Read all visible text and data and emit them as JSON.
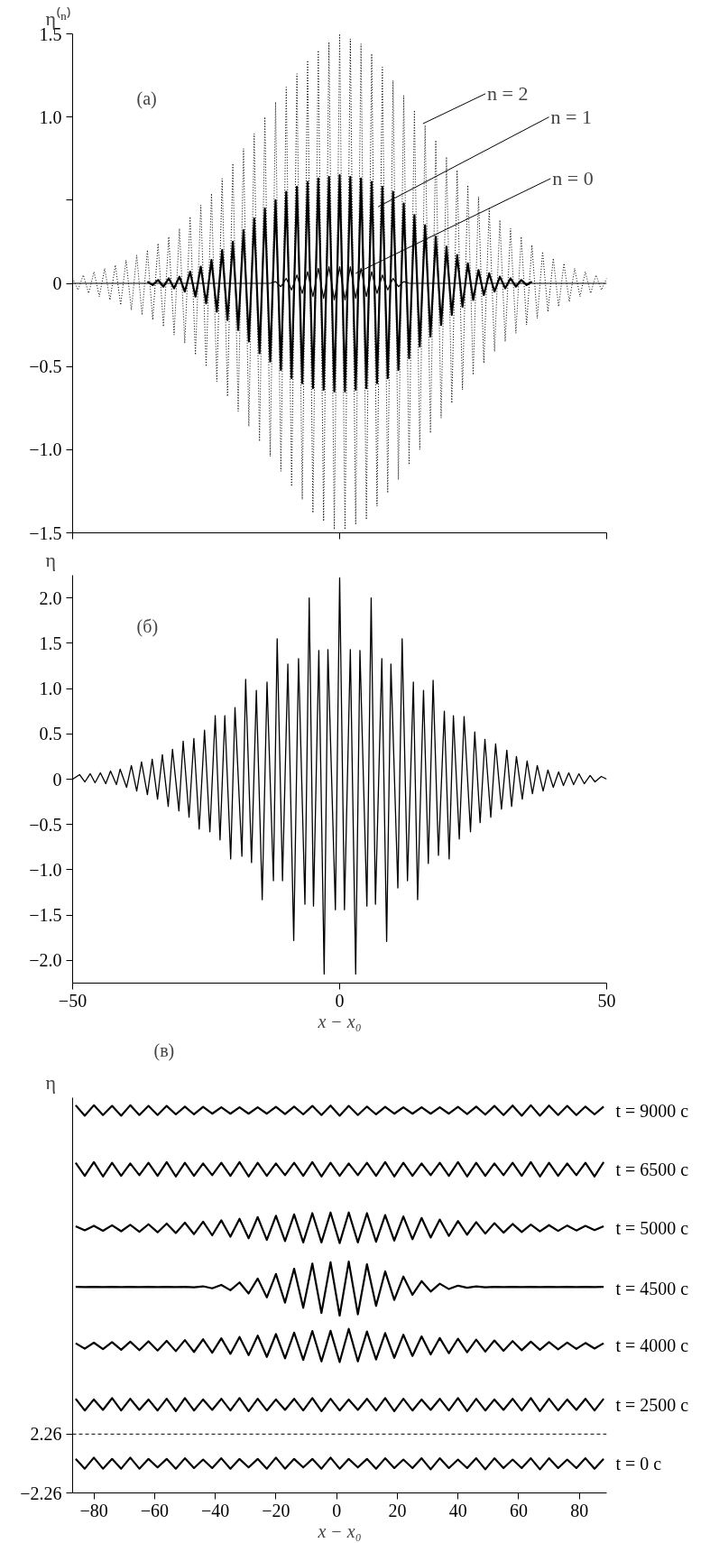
{
  "chart_data": [
    {
      "type": "line",
      "ylabel": "η⁽ⁿ⁾",
      "xlim": [
        -50,
        50
      ],
      "ylim": [
        -1.5,
        1.5
      ],
      "xticks": [
        {
          "value": -50,
          "label": null
        },
        {
          "value": 0,
          "label": null
        },
        {
          "value": 50,
          "label": null
        }
      ],
      "yticks": [
        -1.5,
        {
          "value": -1,
          "label": "−1.0"
        },
        -0.5,
        0,
        {
          "value": 0.5,
          "label": null
        },
        {
          "value": 1,
          "label": "1.0"
        },
        1.5
      ],
      "tick_labels": "y",
      "annotations": [
        "(a)",
        {
          "text": "n = 2",
          "x": 15.6,
          "y": 0.96
        },
        {
          "text": "n = 1",
          "x": 7.2,
          "y": 0.46
        },
        {
          "text": "n = 0",
          "x": 3,
          "y": 0.06
        }
      ],
      "series": [
        {
          "color": "#000000",
          "line_style": "dotted",
          "x": [
            -50,
            -49,
            -48,
            -47,
            -46,
            -45,
            -44,
            -43,
            -42,
            -41,
            -40,
            -39,
            -38,
            -37,
            -36,
            -35,
            -34,
            -33,
            -32,
            -31,
            -30,
            -29,
            -28,
            -27,
            -26,
            -25,
            -24,
            -23,
            -22,
            -21,
            -20,
            -19,
            -18,
            -17,
            -16,
            -15,
            -14,
            -13,
            -12,
            -11,
            -10,
            -9,
            -8,
            -7,
            -6,
            -5,
            -4,
            -3,
            -2,
            -1,
            0,
            1,
            2,
            3,
            4,
            5,
            6,
            7,
            8,
            9,
            10,
            11,
            12,
            13,
            14,
            15,
            16,
            17,
            18,
            19,
            20,
            21,
            22,
            23,
            24,
            25,
            26,
            27,
            28,
            29,
            30,
            31,
            32,
            33,
            34,
            35,
            36,
            37,
            38,
            39,
            40,
            41,
            42,
            43,
            44,
            45,
            46,
            47,
            48,
            49,
            50
          ],
          "values": [
            0.03,
            -0.04,
            0.05,
            -0.06,
            0.07,
            -0.08,
            0.09,
            -0.1,
            0.11,
            -0.13,
            0.14,
            -0.16,
            0.17,
            -0.19,
            0.2,
            -0.22,
            0.24,
            -0.26,
            0.28,
            -0.31,
            0.33,
            -0.36,
            0.4,
            -0.43,
            0.47,
            -0.5,
            0.54,
            -0.59,
            0.63,
            -0.68,
            0.72,
            -0.77,
            0.81,
            -0.86,
            0.9,
            -0.95,
            1.0,
            -1.04,
            1.09,
            -1.13,
            1.18,
            -1.22,
            1.26,
            -1.3,
            1.34,
            -1.38,
            1.4,
            -1.43,
            1.45,
            -1.48,
            1.5,
            -1.48,
            1.47,
            -1.45,
            1.44,
            -1.42,
            1.38,
            -1.34,
            1.3,
            -1.26,
            1.22,
            -1.18,
            1.13,
            -1.09,
            1.04,
            -1.0,
            0.95,
            -0.9,
            0.86,
            -0.81,
            0.76,
            -0.72,
            0.68,
            -0.64,
            0.59,
            -0.55,
            0.52,
            -0.48,
            0.45,
            -0.41,
            0.38,
            -0.35,
            0.33,
            -0.3,
            0.28,
            -0.25,
            0.23,
            -0.21,
            0.19,
            -0.17,
            0.15,
            -0.14,
            0.12,
            -0.11,
            0.09,
            -0.08,
            0.07,
            -0.06,
            0.05,
            -0.04,
            0.03
          ]
        },
        {
          "color": "#000000",
          "line_style": "solid",
          "x": [
            -36,
            -35,
            -34,
            -33,
            -32,
            -31,
            -30,
            -29,
            -28,
            -27,
            -26,
            -25,
            -24,
            -23,
            -22,
            -21,
            -20,
            -19,
            -18,
            -17,
            -16,
            -15,
            -14,
            -13,
            -12,
            -11,
            -10,
            -9,
            -8,
            -7,
            -6,
            -5,
            -4,
            -3,
            -2,
            -1,
            0,
            1,
            2,
            3,
            4,
            5,
            6,
            7,
            8,
            9,
            10,
            11,
            12,
            13,
            14,
            15,
            16,
            17,
            18,
            19,
            20,
            21,
            22,
            23,
            24,
            25,
            26,
            27,
            28,
            29,
            30,
            31,
            32,
            33,
            34,
            35,
            36
          ],
          "values": [
            0.01,
            -0.01,
            0.02,
            -0.02,
            0.03,
            -0.03,
            0.04,
            -0.05,
            0.07,
            -0.08,
            0.1,
            -0.12,
            0.14,
            -0.17,
            0.2,
            -0.22,
            0.25,
            -0.28,
            0.32,
            -0.35,
            0.39,
            -0.42,
            0.45,
            -0.47,
            0.5,
            -0.52,
            0.55,
            -0.57,
            0.58,
            -0.6,
            0.61,
            -0.63,
            0.63,
            -0.64,
            0.64,
            -0.65,
            0.65,
            -0.65,
            0.64,
            -0.64,
            0.63,
            -0.63,
            0.61,
            -0.6,
            0.58,
            -0.57,
            0.55,
            -0.52,
            0.48,
            -0.45,
            0.41,
            -0.38,
            0.35,
            -0.32,
            0.28,
            -0.25,
            0.22,
            -0.19,
            0.17,
            -0.14,
            0.12,
            -0.1,
            0.08,
            -0.07,
            0.06,
            -0.05,
            0.04,
            -0.03,
            0.03,
            -0.02,
            0.02,
            -0.01,
            0.01
          ]
        },
        {
          "color": "#000000",
          "line_style": "solid",
          "x": [
            -50,
            -13,
            -12,
            -11,
            -10,
            -9,
            -8,
            -7,
            -6,
            -5,
            -4,
            -3,
            -2,
            -1,
            0,
            1,
            2,
            3,
            4,
            5,
            6,
            7,
            8,
            9,
            10,
            11,
            12,
            13,
            50
          ],
          "values": [
            0,
            0,
            0.01,
            -0.02,
            0.03,
            -0.04,
            0.05,
            -0.06,
            0.07,
            -0.08,
            0.09,
            -0.09,
            0.1,
            -0.1,
            0.1,
            -0.1,
            0.1,
            -0.09,
            0.09,
            -0.08,
            0.07,
            -0.06,
            0.05,
            -0.04,
            0.03,
            -0.02,
            0.01,
            0,
            0
          ]
        }
      ]
    },
    {
      "type": "line",
      "ylabel": "η",
      "xlabel": "x − x₀",
      "xlim": [
        -50,
        50
      ],
      "ylim": [
        -2.25,
        2.25
      ],
      "xticks": [
        -50,
        0,
        50
      ],
      "yticks": [
        {
          "value": -2,
          "label": "−2.0"
        },
        -1.5,
        {
          "value": -1,
          "label": "−1.0"
        },
        -0.5,
        0,
        0.5,
        {
          "value": 1,
          "label": "1.0"
        },
        1.5,
        {
          "value": 2,
          "label": "2.0"
        }
      ],
      "annotations": [
        "(б)"
      ],
      "series": [
        {
          "color": "#000000",
          "line_style": "solid",
          "x": [
            -50,
            -48.7,
            -47.7,
            -46.7,
            -45.8,
            -44.8,
            -43.8,
            -42.9,
            -41.8,
            -41.1,
            -39.9,
            -39.0,
            -38.0,
            -37.1,
            -36.0,
            -35.1,
            -34.1,
            -33.2,
            -32.1,
            -31.3,
            -30.1,
            -29.3,
            -28.2,
            -27.3,
            -26.3,
            -25.3,
            -24.3,
            -23.3,
            -22.4,
            -21.5,
            -20.4,
            -19.6,
            -18.3,
            -17.6,
            -16.5,
            -15.6,
            -14.5,
            -13.6,
            -12.4,
            -11.7,
            -10.7,
            -9.7,
            -8.6,
            -7.7,
            -6.5,
            -5.7,
            -4.9,
            -3.9,
            -2.9,
            -2.2,
            -0.8,
            0,
            0.9,
            2.0,
            3.0,
            3.8,
            5.1,
            5.9,
            6.7,
            7.9,
            8.8,
            9.6,
            10.9,
            11.7,
            12.7,
            13.8,
            14.6,
            15.7,
            16.6,
            17.5,
            18.5,
            19.6,
            20.5,
            21.3,
            22.4,
            23.3,
            24.5,
            25.3,
            26.3,
            27.2,
            28.3,
            29.2,
            30.3,
            31.3,
            32.2,
            33.1,
            34.2,
            35.1,
            36.1,
            37.0,
            38.1,
            39.0,
            40.0,
            41.0,
            41.9,
            42.9,
            43.8,
            44.8,
            45.8,
            46.9,
            47.8,
            49.0,
            50
          ],
          "values": [
            0,
            0.05,
            -0.03,
            0.06,
            -0.04,
            0.07,
            -0.05,
            0.09,
            -0.06,
            0.11,
            -0.09,
            0.15,
            -0.13,
            0.19,
            -0.17,
            0.22,
            -0.22,
            0.27,
            -0.3,
            0.33,
            -0.35,
            0.42,
            -0.42,
            0.45,
            -0.55,
            0.54,
            -0.58,
            0.7,
            -0.67,
            0.7,
            -0.88,
            0.79,
            -0.85,
            1.1,
            -0.92,
            0.98,
            -1.33,
            1.07,
            -1.12,
            1.55,
            -1.12,
            1.27,
            -1.78,
            1.33,
            -1.38,
            2.0,
            -1.4,
            1.42,
            -2.15,
            1.43,
            -1.44,
            2.22,
            -1.44,
            1.43,
            -2.15,
            1.42,
            -1.4,
            2.0,
            -1.38,
            1.33,
            -1.79,
            1.27,
            -1.2,
            1.55,
            -1.12,
            1.07,
            -1.33,
            0.98,
            -0.93,
            1.09,
            -0.84,
            0.75,
            -0.88,
            0.7,
            -0.66,
            0.69,
            -0.58,
            0.52,
            -0.48,
            0.44,
            -0.42,
            0.39,
            -0.33,
            0.32,
            -0.3,
            0.25,
            -0.22,
            0.2,
            -0.16,
            0.15,
            -0.13,
            0.1,
            -0.09,
            0.08,
            -0.07,
            0.07,
            -0.06,
            0.06,
            -0.05,
            0.04,
            -0.03,
            0.03,
            0
          ]
        }
      ]
    },
    {
      "type": "line",
      "ylabel": "η",
      "xlabel": "x − x₀",
      "xlim": [
        -87,
        89
      ],
      "ylim": [
        -2.26,
        28.1
      ],
      "xticks": [
        -80,
        -60,
        -40,
        -20,
        0,
        20,
        40,
        60,
        80
      ],
      "yticks": [
        -2.26,
        2.26
      ],
      "annotations": [
        "(в)"
      ],
      "ref_lines": [
        {
          "axis": "y",
          "value": 2.26,
          "line_style": "dashed"
        }
      ],
      "x": [
        -86,
        -83,
        -80,
        -77,
        -74,
        -71,
        -68,
        -65,
        -62,
        -59,
        -56,
        -53,
        -50,
        -47,
        -44,
        -41,
        -38,
        -35,
        -32,
        -29,
        -26,
        -23,
        -20,
        -17,
        -14,
        -11,
        -8,
        -5,
        -2,
        1,
        4,
        7,
        10,
        13,
        16,
        19,
        22,
        25,
        28,
        31,
        34,
        37,
        40,
        43,
        46,
        49,
        52,
        55,
        58,
        61,
        64,
        67,
        70,
        73,
        76,
        79,
        82,
        85,
        88
      ],
      "series": [
        {
          "name": "t = 0 с",
          "color": "#000000",
          "line_style": "solid",
          "values": [
            0.35,
            -0.4,
            0.45,
            -0.4,
            0.35,
            -0.4,
            0.45,
            -0.4,
            0.35,
            -0.3,
            0.35,
            -0.4,
            0.4,
            -0.35,
            0.3,
            -0.35,
            0.4,
            -0.4,
            0.35,
            -0.3,
            0.35,
            -0.4,
            0.45,
            -0.4,
            0.35,
            -0.3,
            0.35,
            -0.4,
            0.45,
            -0.4,
            0.35,
            -0.3,
            0.35,
            -0.4,
            0.4,
            -0.35,
            0.3,
            -0.35,
            0.4,
            -0.45,
            0.4,
            -0.35,
            0.3,
            -0.35,
            0.4,
            -0.45,
            0.4,
            -0.35,
            0.3,
            -0.35,
            0.4,
            -0.45,
            0.4,
            -0.35,
            0.3,
            -0.35,
            0.4,
            -0.4,
            0.35
          ]
        },
        {
          "name": "t = 2500 с",
          "color": "#000000",
          "line_style": "solid",
          "values": [
            4.97,
            4.07,
            4.92,
            4.12,
            5.02,
            4.07,
            4.97,
            4.12,
            4.92,
            4.07,
            4.97,
            4.02,
            5.02,
            4.07,
            4.92,
            4.12,
            4.97,
            4.07,
            5.02,
            4.02,
            4.97,
            4.07,
            4.92,
            4.12,
            4.97,
            4.07,
            5.02,
            4.02,
            4.97,
            4.07,
            4.92,
            4.12,
            4.97,
            4.07,
            5.02,
            4.02,
            4.97,
            4.07,
            4.92,
            4.12,
            4.97,
            4.07,
            5.02,
            4.02,
            4.97,
            4.07,
            4.92,
            4.12,
            4.97,
            4.07,
            5.02,
            4.02,
            4.97,
            4.07,
            4.92,
            4.12,
            4.97,
            4.07,
            4.97
          ]
        },
        {
          "name": "t = 4000 с",
          "color": "#000000",
          "line_style": "solid",
          "values": [
            9.24,
            8.82,
            9.28,
            8.78,
            9.32,
            8.74,
            9.36,
            8.71,
            9.39,
            8.68,
            9.42,
            8.63,
            9.48,
            8.57,
            9.54,
            8.51,
            9.62,
            8.42,
            9.72,
            8.32,
            9.82,
            8.19,
            9.94,
            8.08,
            10.06,
            7.96,
            10.18,
            7.84,
            10.19,
            7.79,
            10.34,
            7.84,
            10.14,
            7.99,
            10.02,
            8.12,
            9.89,
            8.26,
            9.76,
            8.38,
            9.64,
            8.47,
            9.59,
            8.54,
            9.51,
            8.6,
            9.45,
            8.66,
            9.4,
            8.7,
            9.36,
            8.74,
            9.32,
            8.77,
            9.29,
            8.8,
            9.26,
            8.83,
            9.24
          ]
        },
        {
          "name": "t = 4500 с",
          "color": "#000000",
          "line_style": "solid",
          "values": [
            13.57,
            13.55,
            13.57,
            13.55,
            13.57,
            13.55,
            13.57,
            13.55,
            13.57,
            13.55,
            13.57,
            13.55,
            13.57,
            13.53,
            13.61,
            13.46,
            13.72,
            13.31,
            13.91,
            13.06,
            14.21,
            12.76,
            14.56,
            12.36,
            14.96,
            11.96,
            15.36,
            11.56,
            15.46,
            11.36,
            15.51,
            11.46,
            15.31,
            12.11,
            14.76,
            12.56,
            14.36,
            12.96,
            14.01,
            13.21,
            13.81,
            13.4,
            13.66,
            13.5,
            13.6,
            13.54,
            13.57,
            13.55,
            13.57,
            13.55,
            13.57,
            13.55,
            13.57,
            13.55,
            13.57,
            13.55,
            13.57,
            13.55,
            13.57
          ]
        },
        {
          "name": "t = 5000 с",
          "color": "#000000",
          "line_style": "solid",
          "values": [
            18.23,
            17.91,
            18.26,
            17.88,
            18.3,
            17.84,
            18.34,
            17.8,
            18.38,
            17.76,
            18.43,
            17.7,
            18.5,
            17.62,
            18.58,
            17.53,
            18.68,
            17.42,
            18.8,
            17.3,
            18.93,
            17.18,
            19.03,
            17.08,
            19.13,
            16.98,
            19.23,
            16.98,
            19.28,
            16.93,
            19.28,
            16.98,
            19.23,
            17.03,
            19.08,
            17.13,
            18.98,
            17.23,
            18.86,
            17.36,
            18.74,
            17.48,
            18.63,
            17.58,
            18.54,
            17.66,
            18.46,
            17.73,
            18.4,
            17.78,
            18.35,
            17.83,
            18.31,
            17.87,
            18.28,
            17.9,
            18.25,
            17.92,
            18.23
          ]
        },
        {
          "name": "t = 6500 с",
          "color": "#000000",
          "line_style": "solid",
          "values": [
            23.1,
            22.1,
            23.15,
            22.05,
            23.1,
            22.1,
            23.05,
            22.15,
            23.1,
            22.1,
            23.15,
            22.05,
            23.1,
            22.1,
            23.05,
            22.15,
            23.1,
            22.1,
            23.15,
            22.05,
            23.1,
            22.1,
            23.05,
            22.15,
            23.1,
            22.1,
            23.15,
            22.05,
            23.1,
            22.1,
            23.05,
            22.15,
            23.1,
            22.1,
            23.15,
            22.05,
            23.1,
            22.1,
            23.05,
            22.15,
            23.1,
            22.1,
            23.15,
            22.05,
            23.1,
            22.1,
            23.05,
            22.15,
            23.1,
            22.1,
            23.15,
            22.05,
            23.1,
            22.1,
            23.05,
            22.15,
            23.1,
            22.05,
            23.15
          ]
        },
        {
          "name": "t = 9000 с",
          "color": "#000000",
          "line_style": "solid",
          "values": [
            27.52,
            26.72,
            27.52,
            26.77,
            27.47,
            26.72,
            27.52,
            26.77,
            27.47,
            26.77,
            27.47,
            26.82,
            27.42,
            26.82,
            27.4,
            26.87,
            27.37,
            26.87,
            27.37,
            26.87,
            27.37,
            26.87,
            27.4,
            26.84,
            27.42,
            26.82,
            27.47,
            26.77,
            27.5,
            26.72,
            27.47,
            26.77,
            27.42,
            26.82,
            27.4,
            26.87,
            27.37,
            26.87,
            27.37,
            26.87,
            27.37,
            26.87,
            27.4,
            26.84,
            27.42,
            26.8,
            27.47,
            26.77,
            27.5,
            26.72,
            27.52,
            26.72,
            27.5,
            26.77,
            27.47,
            26.77,
            27.42,
            26.82,
            27.42
          ]
        }
      ]
    }
  ]
}
